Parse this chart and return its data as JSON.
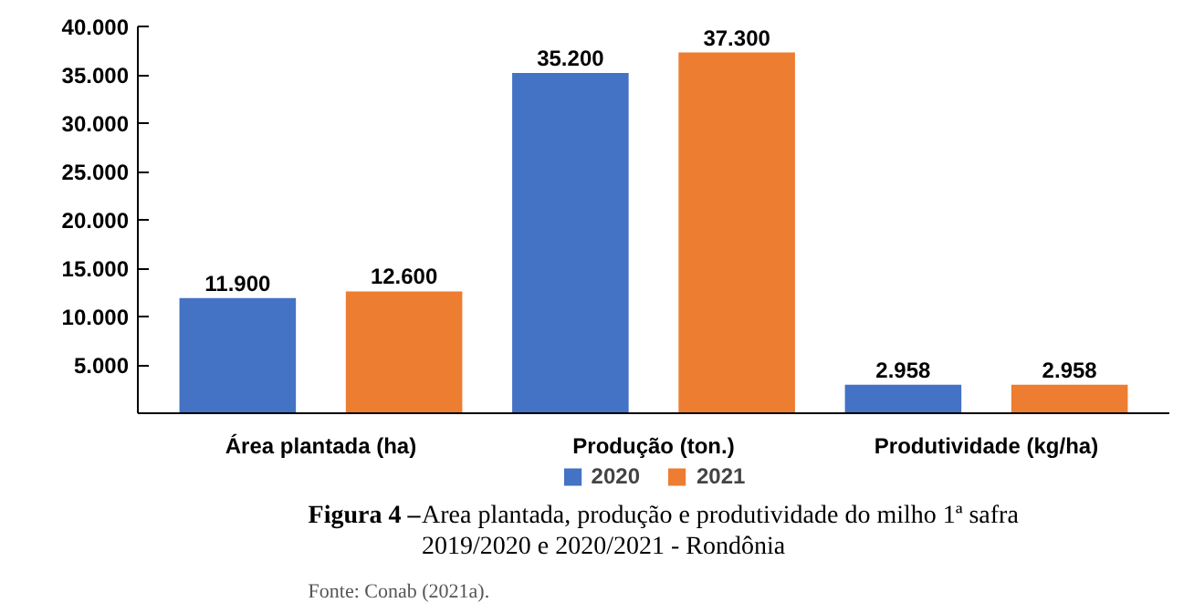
{
  "chart_data": {
    "type": "bar",
    "categories": [
      "Área plantada (ha)",
      "Produção (ton.)",
      "Produtividade (kg/ha)"
    ],
    "series": [
      {
        "name": "2020",
        "color": "#4472c4",
        "values": [
          11900,
          35200,
          2958
        ],
        "value_labels": [
          "11.900",
          "35.200",
          "2.958"
        ]
      },
      {
        "name": "2021",
        "color": "#ed7d31",
        "values": [
          12600,
          37300,
          2958
        ],
        "value_labels": [
          "12.600",
          "37.300",
          "2.958"
        ]
      }
    ],
    "ylim": [
      0,
      40000
    ],
    "yticks": [
      {
        "value": 5000,
        "label": "5.000"
      },
      {
        "value": 10000,
        "label": "10.000"
      },
      {
        "value": 15000,
        "label": "15.000"
      },
      {
        "value": 20000,
        "label": "20.000"
      },
      {
        "value": 25000,
        "label": "25.000"
      },
      {
        "value": 30000,
        "label": "30.000"
      },
      {
        "value": 35000,
        "label": "35.000"
      },
      {
        "value": 40000,
        "label": "40.000"
      }
    ],
    "grid": false,
    "legend": "bottom",
    "annotations": [
      "Figura 4 –",
      "Area plantada, produção e produtividade do milho 1ª safra 2019/2020 e 2020/2021 - Rondônia",
      "Fonte: Conab (2021a)."
    ]
  }
}
